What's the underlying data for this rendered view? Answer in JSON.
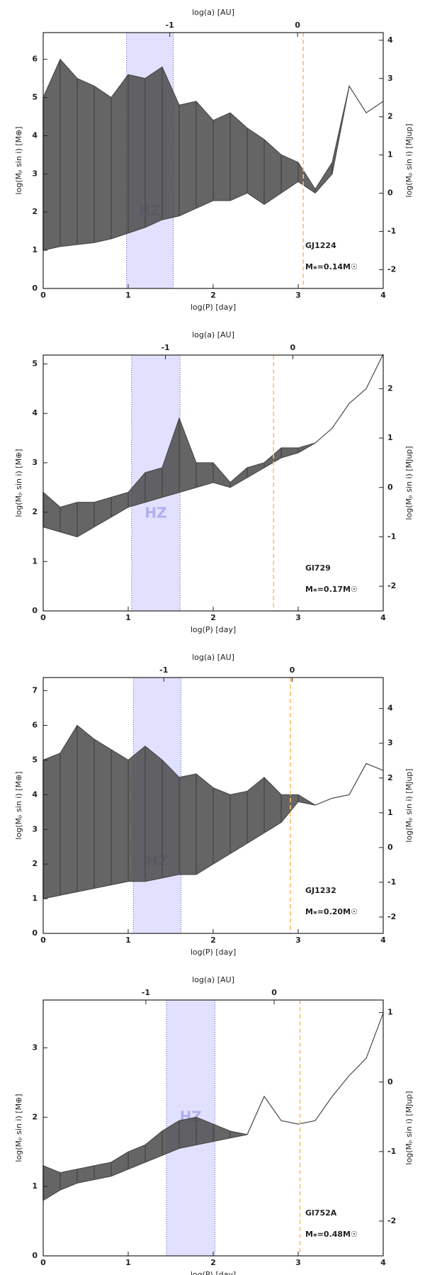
{
  "chart_data": [
    {
      "type": "band",
      "star": "GJ1224",
      "mass_label": "M⁎=0.14M☉",
      "xlabel": "log(P) [day]",
      "ylabel": "log(Mₚ sin i) [M⊕]",
      "y2label": "log(Mₚ sin i) [MJup]",
      "x2label": "log(a) [AU]",
      "xlim": [
        0,
        4
      ],
      "xticks": [
        0,
        1,
        2,
        3,
        4
      ],
      "ylim": [
        0,
        6.7
      ],
      "yticks": [
        0,
        1,
        2,
        3,
        4,
        5,
        6
      ],
      "y2lim": [
        -2.49,
        4.2
      ],
      "y2ticks": [
        -2,
        -1,
        0,
        1,
        2,
        3,
        4
      ],
      "x2lim": [
        -1.99,
        0.67
      ],
      "x2ticks": [
        -1,
        0
      ],
      "hz": [
        0.98,
        1.53
      ],
      "hz_label": "HZ",
      "vline": 3.06,
      "color": "#4a4a4a",
      "hz_color": "#dcdcff",
      "vline_color": "#ffbf66",
      "x": [
        0,
        0.2,
        0.4,
        0.6,
        0.8,
        1.0,
        1.2,
        1.4,
        1.6,
        1.8,
        2.0,
        2.2,
        2.4,
        2.6,
        2.8,
        3.0,
        3.2,
        3.4,
        3.6,
        3.8,
        4.0
      ],
      "upper": [
        5.0,
        6.0,
        5.5,
        5.3,
        5.0,
        5.6,
        5.5,
        5.8,
        4.8,
        4.9,
        4.4,
        4.6,
        4.2,
        3.9,
        3.5,
        3.3,
        2.6,
        3.3,
        5.3,
        4.6,
        4.9
      ],
      "lower": [
        1.0,
        1.1,
        1.15,
        1.2,
        1.3,
        1.45,
        1.6,
        1.8,
        1.9,
        2.1,
        2.3,
        2.3,
        2.5,
        2.2,
        2.5,
        2.8,
        2.5,
        3.0,
        5.3,
        4.6,
        4.9
      ]
    },
    {
      "type": "band",
      "star": "Gl729",
      "mass_label": "M⁎=0.17M☉",
      "xlabel": "log(P) [day]",
      "ylabel": "log(Mₚ sin i) [M⊕]",
      "y2label": "log(Mₚ sin i) [MJup]",
      "x2label": "log(a) [AU]",
      "xlim": [
        0,
        4
      ],
      "xticks": [
        0,
        1,
        2,
        3,
        4
      ],
      "ylim": [
        0,
        5.18
      ],
      "yticks": [
        0,
        1,
        2,
        3,
        4,
        5
      ],
      "y2lim": [
        -2.5,
        2.68
      ],
      "y2ticks": [
        -2,
        -1,
        0,
        1,
        2
      ],
      "x2lim": [
        -1.96,
        0.71
      ],
      "x2ticks": [
        -1,
        0
      ],
      "hz": [
        1.04,
        1.61
      ],
      "hz_label": "HZ",
      "vline": 2.71,
      "color": "#4a4a4a",
      "hz_color": "#dcdcff",
      "vline_color": "#ffbf66",
      "x": [
        0,
        0.2,
        0.4,
        0.6,
        0.8,
        1.0,
        1.2,
        1.4,
        1.6,
        1.8,
        2.0,
        2.2,
        2.4,
        2.6,
        2.8,
        3.0,
        3.2,
        3.4,
        3.6,
        3.8,
        4.0
      ],
      "upper": [
        2.4,
        2.1,
        2.2,
        2.2,
        2.3,
        2.4,
        2.8,
        2.9,
        3.9,
        3.0,
        3.0,
        2.6,
        2.9,
        3.0,
        3.3,
        3.3,
        3.4,
        3.7,
        4.2,
        4.5,
        5.2
      ],
      "lower": [
        1.7,
        1.6,
        1.5,
        1.7,
        1.9,
        2.1,
        2.2,
        2.3,
        2.4,
        2.5,
        2.6,
        2.5,
        2.7,
        2.9,
        3.1,
        3.2,
        3.4,
        3.7,
        4.2,
        4.5,
        5.2
      ]
    },
    {
      "type": "band",
      "star": "GJ1232",
      "mass_label": "M⁎=0.20M☉",
      "xlabel": "log(P) [day]",
      "ylabel": "log(Mₚ sin i) [M⊕]",
      "y2label": "log(Mₚ sin i) [MJup]",
      "x2label": "log(a) [AU]",
      "xlim": [
        0,
        4
      ],
      "xticks": [
        0,
        1,
        2,
        3,
        4
      ],
      "ylim": [
        0,
        7.38
      ],
      "yticks": [
        0,
        1,
        2,
        3,
        4,
        5,
        6,
        7
      ],
      "y2lim": [
        -2.47,
        4.89
      ],
      "y2ticks": [
        -2,
        -1,
        0,
        1,
        2,
        3,
        4
      ],
      "x2lim": [
        -1.94,
        0.71
      ],
      "x2ticks": [
        -1,
        0
      ],
      "hz": [
        1.06,
        1.62
      ],
      "hz_label": "HZ",
      "vline": 2.91,
      "color": "#4a4a4a",
      "hz_color": "#dcdcff",
      "vline_color": "#ffbf66",
      "x": [
        0,
        0.2,
        0.4,
        0.6,
        0.8,
        1.0,
        1.2,
        1.4,
        1.6,
        1.8,
        2.0,
        2.2,
        2.4,
        2.6,
        2.8,
        3.0,
        3.2,
        3.4,
        3.6,
        3.8,
        4.0
      ],
      "upper": [
        5.0,
        5.2,
        6.0,
        5.6,
        5.3,
        5.0,
        5.4,
        5.0,
        4.5,
        4.6,
        4.2,
        4.0,
        4.1,
        4.5,
        4.0,
        4.0,
        3.7,
        3.9,
        4.0,
        4.9,
        4.7
      ],
      "lower": [
        1.0,
        1.1,
        1.2,
        1.3,
        1.4,
        1.5,
        1.5,
        1.6,
        1.7,
        1.7,
        2.0,
        2.3,
        2.6,
        2.9,
        3.2,
        3.8,
        3.7,
        3.9,
        4.0,
        4.9,
        4.7
      ]
    },
    {
      "type": "band",
      "star": "Gl752A",
      "mass_label": "M⁎=0.48M☉",
      "xlabel": "log(P) [day]",
      "ylabel": "log(Mₚ sin i) [M⊕]",
      "y2label": "log(Mₚ sin i) [MJup]",
      "x2label": "log(a) [AU]",
      "xlim": [
        0,
        4
      ],
      "xticks": [
        0,
        1,
        2,
        3,
        4
      ],
      "ylim": [
        0,
        3.69
      ],
      "yticks": [
        0,
        1,
        2,
        3
      ],
      "y2lim": [
        -2.5,
        1.18
      ],
      "y2ticks": [
        -2,
        -1,
        0,
        1
      ],
      "x2lim": [
        -1.8,
        0.85
      ],
      "x2ticks": [
        -1,
        0
      ],
      "hz": [
        1.45,
        2.02
      ],
      "hz_label": "HZ",
      "vline": 3.02,
      "color": "#4a4a4a",
      "hz_color": "#dcdcff",
      "vline_color": "#ffbf66",
      "x": [
        0,
        0.2,
        0.4,
        0.6,
        0.8,
        1.0,
        1.2,
        1.4,
        1.6,
        1.8,
        2.0,
        2.2,
        2.4,
        2.6,
        2.8,
        3.0,
        3.2,
        3.4,
        3.6,
        3.8,
        4.0
      ],
      "upper": [
        1.3,
        1.2,
        1.25,
        1.3,
        1.35,
        1.5,
        1.6,
        1.8,
        1.95,
        2.0,
        1.9,
        1.8,
        1.75,
        2.3,
        1.95,
        1.9,
        1.95,
        2.3,
        2.6,
        2.85,
        3.5
      ],
      "lower": [
        0.8,
        0.95,
        1.05,
        1.1,
        1.15,
        1.25,
        1.35,
        1.45,
        1.55,
        1.6,
        1.65,
        1.7,
        1.75,
        2.3,
        1.95,
        1.9,
        1.95,
        2.3,
        2.6,
        2.85,
        3.5
      ]
    }
  ]
}
